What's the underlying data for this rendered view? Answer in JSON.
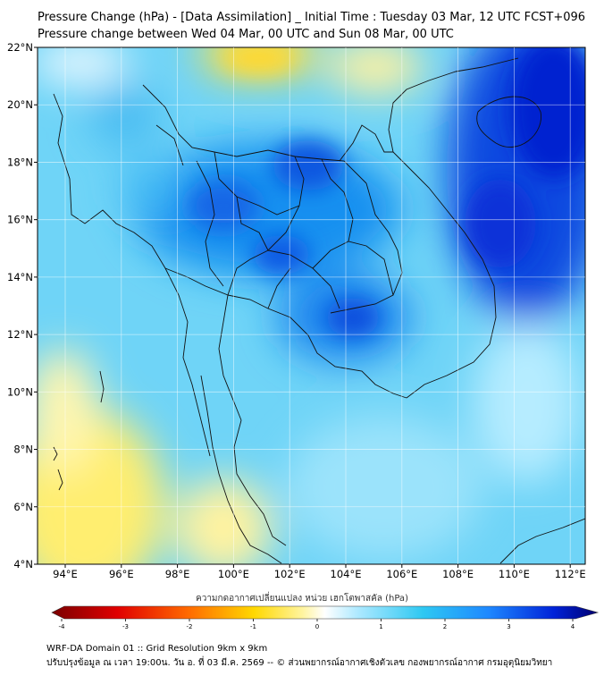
{
  "title_line1": "Pressure Change (hPa) - [Data Assimilation] _ Initial Time : Tuesday 03 Mar, 12 UTC FCST+096",
  "title_line2": "Pressure change between Wed 04 Mar, 00 UTC and Sun 08 Mar, 00 UTC",
  "lat_labels": [
    "22°N",
    "20°N",
    "18°N",
    "16°N",
    "14°N",
    "12°N",
    "10°N",
    "8°N",
    "6°N",
    "4°N"
  ],
  "lon_labels": [
    "94°E",
    "96°E",
    "98°E",
    "100°E",
    "102°E",
    "104°E",
    "106°E",
    "108°E",
    "110°E",
    "112°E"
  ],
  "colorbar": {
    "title": "ความกดอากาศเปลี่ยนแปลง หน่วย เฮกโตพาสคัล (hPa)",
    "ticks": [
      "-4",
      "-3",
      "-2",
      "-1",
      "0",
      "1",
      "2",
      "3",
      "4"
    ],
    "range": [
      -4,
      4
    ],
    "colors": [
      "#7a0000",
      "#e00000",
      "#ff6a00",
      "#ffd800",
      "#fff4a0",
      "#ffffff",
      "#aee9ff",
      "#2ec8f2",
      "#1e88ff",
      "#0022d8",
      "#000070"
    ]
  },
  "footer_line1": "WRF-DA Domain 01 :: Grid Resolution 9km x 9km",
  "footer_line2": "ปรับปรุงข้อมูล ณ เวลา 19:00น. วัน อ. ที่ 03 มี.ค. 2569 -- © ส่วนพยากรณ์อากาศเชิงตัวเลข กองพยากรณ์อากาศ กรมอุตุนิยมวิทยา"
}
